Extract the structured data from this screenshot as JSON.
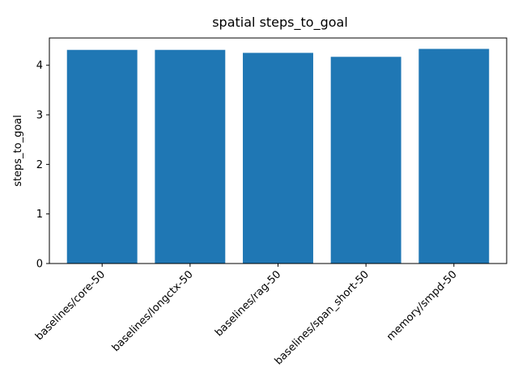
{
  "chart_data": {
    "type": "bar",
    "title": "spatial steps_to_goal",
    "xlabel": "",
    "ylabel": "steps_to_goal",
    "categories": [
      "baselines/core-50",
      "baselines/longctx-50",
      "baselines/rag-50",
      "baselines/span_short-50",
      "memory/smpd-50"
    ],
    "values": [
      4.31,
      4.31,
      4.25,
      4.17,
      4.33
    ],
    "ylim": [
      0,
      4.55
    ],
    "yticks": [
      0,
      1,
      2,
      3,
      4
    ],
    "grid": false,
    "bar_color": "#1f77b4"
  }
}
